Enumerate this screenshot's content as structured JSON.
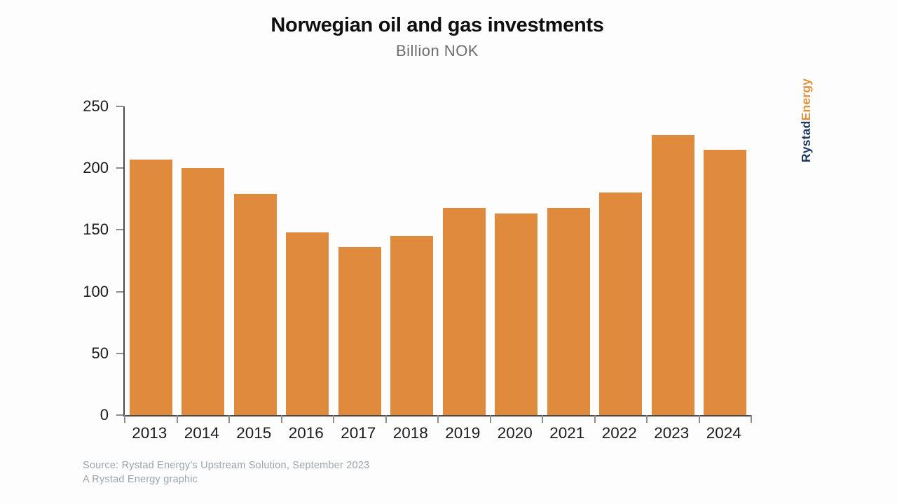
{
  "header": {
    "title": "Norwegian oil and gas investments",
    "subtitle": "Billion NOK"
  },
  "branding": {
    "logo_part1": "Rystad",
    "logo_part2": "Energy",
    "logo_part1_color": "#1d3a5f",
    "logo_part2_color": "#e0913f"
  },
  "source": {
    "line1": "Source: Rystad Energy’s Upstream Solution, September 2023",
    "line2": "A Rystad Energy graphic"
  },
  "chart_data": {
    "type": "bar",
    "title": "Norwegian oil and gas investments",
    "subtitle": "Billion NOK",
    "categories": [
      "2013",
      "2014",
      "2015",
      "2016",
      "2017",
      "2018",
      "2019",
      "2020",
      "2021",
      "2022",
      "2023",
      "2024"
    ],
    "values": [
      207,
      200,
      179,
      148,
      136,
      145,
      168,
      163,
      168,
      180,
      227,
      215
    ],
    "xlabel": "",
    "ylabel": "Billion NOK",
    "ylim": [
      0,
      250
    ],
    "yticks": [
      0,
      50,
      100,
      150,
      200,
      250
    ],
    "bar_color": "#e08a3e",
    "grid": false,
    "legend": false
  }
}
